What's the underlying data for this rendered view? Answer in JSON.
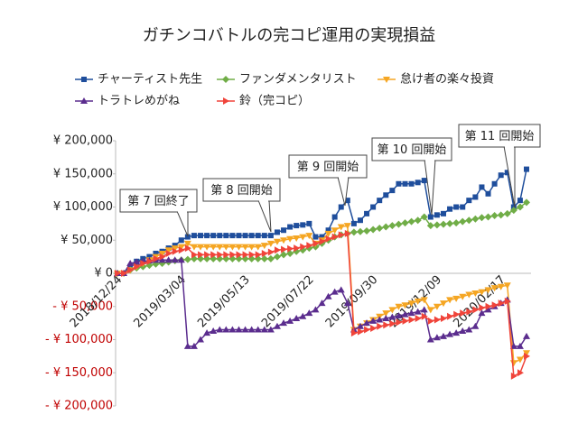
{
  "chart_data": {
    "type": "line",
    "title": "ガチンコバトルの完コピ運用の実現損益",
    "categories": [
      "2018/12/24",
      null,
      null,
      null,
      null,
      null,
      null,
      null,
      null,
      null,
      "2019/03/04",
      null,
      null,
      null,
      null,
      null,
      null,
      null,
      null,
      null,
      "2019/05/13",
      null,
      null,
      null,
      null,
      null,
      null,
      null,
      null,
      null,
      "2019/07/22",
      null,
      null,
      null,
      null,
      null,
      null,
      null,
      null,
      null,
      "2019/09/30",
      null,
      null,
      null,
      null,
      null,
      null,
      null,
      null,
      null,
      "2019/12/09",
      null,
      null,
      null,
      null,
      null,
      null,
      null,
      null,
      null,
      "2020/02/17",
      null,
      null,
      null,
      null
    ],
    "series": [
      {
        "name": "チャーティスト先生",
        "color": "#1f4e9c",
        "marker": "square",
        "values": [
          0,
          0,
          10000,
          18000,
          22000,
          25000,
          30000,
          33000,
          38000,
          42000,
          50000,
          55000,
          57000,
          57000,
          57000,
          57000,
          57000,
          57000,
          57000,
          57000,
          57000,
          57000,
          57000,
          57000,
          57000,
          62000,
          65000,
          70000,
          72000,
          73000,
          75000,
          55000,
          55000,
          65000,
          85000,
          100000,
          110000,
          75000,
          80000,
          90000,
          100000,
          110000,
          118000,
          125000,
          135000,
          135000,
          135000,
          137000,
          140000,
          85000,
          88000,
          90000,
          97000,
          100000,
          100000,
          110000,
          115000,
          130000,
          120000,
          135000,
          148000,
          152000,
          100000,
          110000,
          157000
        ]
      },
      {
        "name": "ファンダメンタリスト",
        "color": "#70ad47",
        "marker": "diamond",
        "values": [
          0,
          0,
          5000,
          8000,
          10000,
          12000,
          14000,
          15000,
          17000,
          19000,
          20000,
          21000,
          22000,
          22000,
          22000,
          22000,
          22000,
          22000,
          22000,
          22000,
          22000,
          22000,
          22000,
          22000,
          22000,
          25000,
          28000,
          30000,
          33000,
          35000,
          38000,
          40000,
          45000,
          50000,
          55000,
          58000,
          60000,
          62000,
          63000,
          64000,
          66000,
          68000,
          70000,
          72000,
          74000,
          76000,
          78000,
          80000,
          85000,
          72000,
          73000,
          74000,
          75000,
          76000,
          78000,
          80000,
          82000,
          84000,
          85000,
          87000,
          88000,
          90000,
          95000,
          100000,
          107000
        ]
      },
      {
        "name": "怠け者の楽々投資",
        "color": "#f5a623",
        "marker": "down",
        "values": [
          0,
          0,
          5000,
          10000,
          15000,
          20000,
          25000,
          30000,
          35000,
          38000,
          40000,
          45000,
          40000,
          40000,
          40000,
          40000,
          40000,
          40000,
          40000,
          40000,
          40000,
          40000,
          40000,
          42000,
          45000,
          48000,
          50000,
          52000,
          53000,
          55000,
          57000,
          45000,
          50000,
          60000,
          65000,
          70000,
          72000,
          -85000,
          -80000,
          -75000,
          -70000,
          -65000,
          -60000,
          -55000,
          -50000,
          -48000,
          -45000,
          -42000,
          -40000,
          -55000,
          -50000,
          -45000,
          -40000,
          -38000,
          -35000,
          -32000,
          -30000,
          -28000,
          -25000,
          -22000,
          -20000,
          -18000,
          -135000,
          -130000,
          -120000
        ]
      },
      {
        "name": "トラトレめがね",
        "color": "#5b2d8e",
        "marker": "up",
        "values": [
          0,
          0,
          15000,
          17000,
          18000,
          19000,
          20000,
          20000,
          20000,
          20000,
          20000,
          -110000,
          -110000,
          -100000,
          -90000,
          -87000,
          -85000,
          -85000,
          -85000,
          -85000,
          -85000,
          -85000,
          -85000,
          -85000,
          -85000,
          -80000,
          -75000,
          -72000,
          -68000,
          -65000,
          -60000,
          -55000,
          -45000,
          -35000,
          -28000,
          -25000,
          -45000,
          -85000,
          -80000,
          -75000,
          -72000,
          -70000,
          -68000,
          -66000,
          -64000,
          -62000,
          -60000,
          -58000,
          -55000,
          -100000,
          -97000,
          -95000,
          -92000,
          -90000,
          -87000,
          -85000,
          -80000,
          -60000,
          -55000,
          -50000,
          -45000,
          -40000,
          -110000,
          -110000,
          -95000
        ]
      },
      {
        "name": "鈴（完コピ）",
        "color": "#f0443a",
        "marker": "right",
        "values": [
          0,
          0,
          5000,
          10000,
          15000,
          18000,
          22000,
          25000,
          30000,
          33000,
          35000,
          38000,
          28000,
          28000,
          28000,
          28000,
          28000,
          28000,
          28000,
          28000,
          28000,
          28000,
          28000,
          30000,
          32000,
          35000,
          36000,
          37000,
          38000,
          40000,
          42000,
          45000,
          48000,
          52000,
          55000,
          58000,
          60000,
          -90000,
          -88000,
          -85000,
          -83000,
          -80000,
          -78000,
          -76000,
          -74000,
          -72000,
          -70000,
          -68000,
          -65000,
          -72000,
          -70000,
          -68000,
          -65000,
          -62000,
          -60000,
          -58000,
          -55000,
          -52000,
          -50000,
          -48000,
          -45000,
          -42000,
          -155000,
          -150000,
          -125000
        ]
      }
    ],
    "ylim": [
      -200000,
      200000
    ],
    "yticks": [
      {
        "value": -200000,
        "label": "- ¥ 200,000"
      },
      {
        "value": -150000,
        "label": "- ¥ 150,000"
      },
      {
        "value": -100000,
        "label": "- ¥ 100,000"
      },
      {
        "value": -50000,
        "label": "- ¥ 50,000"
      },
      {
        "value": 0,
        "label": "¥ 0"
      },
      {
        "value": 50000,
        "label": "¥ 50,000"
      },
      {
        "value": 100000,
        "label": "¥ 100,000"
      },
      {
        "value": 150000,
        "label": "¥ 150,000"
      },
      {
        "value": 200000,
        "label": "¥ 200,000"
      }
    ],
    "negative_tick_color": "#c00000",
    "grid": false,
    "legend": "top",
    "annotations": [
      "第 7 回終了",
      "第 8 回開始",
      "第 9 回開始",
      "第 10 回開始",
      "第 11 回開始"
    ]
  }
}
